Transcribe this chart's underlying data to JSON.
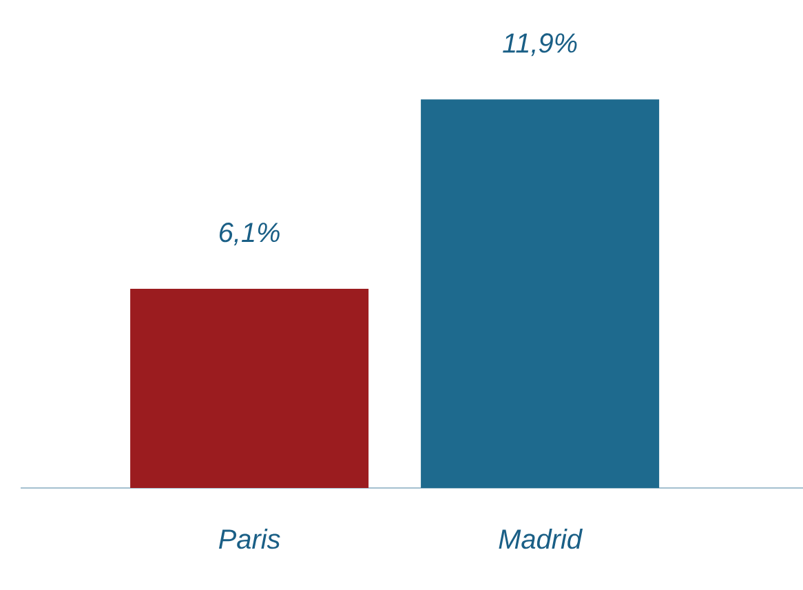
{
  "chart_data": {
    "type": "bar",
    "categories": [
      "Paris",
      "Madrid"
    ],
    "values": [
      6.1,
      11.9
    ],
    "value_labels": [
      "6,1%",
      "11,9%"
    ],
    "colors": [
      "#9b1c1f",
      "#1e6a8e"
    ]
  }
}
